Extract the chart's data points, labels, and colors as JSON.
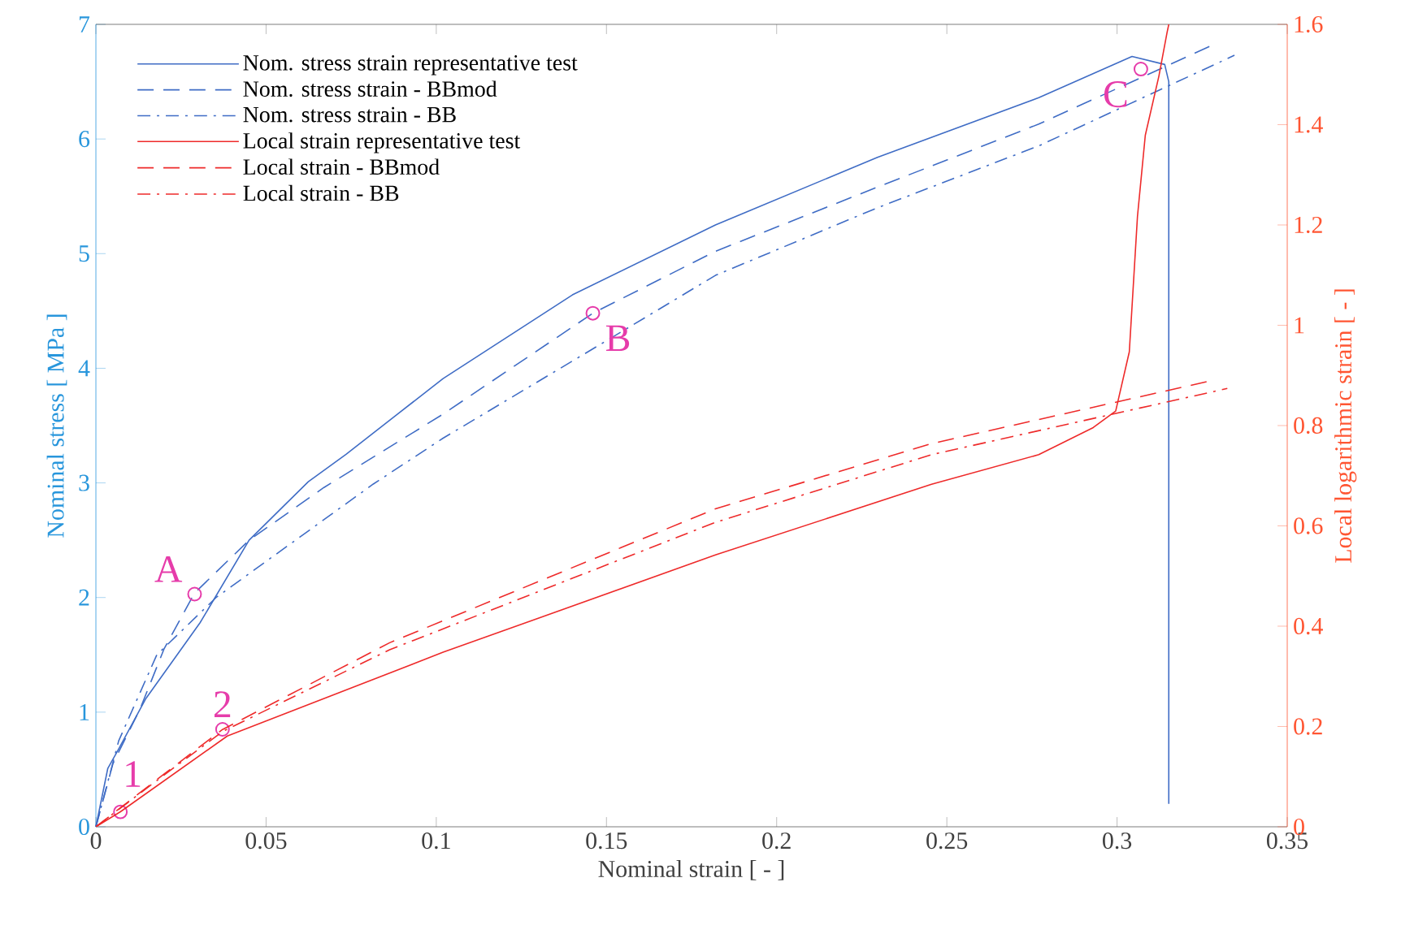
{
  "chart_data": {
    "type": "line",
    "xlabel": "Nominal strain [ - ]",
    "ylabel": "Nominal stress [ MPa ]",
    "y2label": "Local logarithmic strain [ - ]",
    "xlim": [
      0,
      0.35
    ],
    "xticks": [
      0,
      0.05,
      0.1,
      0.15,
      0.2,
      0.25,
      0.3,
      0.35
    ],
    "ylim": [
      0,
      7
    ],
    "yticks": [
      0,
      1,
      2,
      3,
      4,
      5,
      6,
      7
    ],
    "y2lim": [
      0,
      1.6
    ],
    "y2ticks": [
      0,
      0.2,
      0.4,
      0.6,
      0.8,
      1,
      1.2,
      1.4,
      1.6
    ],
    "legend": "top left",
    "grid": false,
    "series": [
      {
        "name": "Nom. stress strain representative test",
        "color": "#3f6cc5",
        "line_style": "solid",
        "x": [
          0,
          0.0035,
          0.0067,
          0.0147,
          0.0306,
          0.045,
          0.0624,
          0.0735,
          0.102,
          0.14,
          0.182,
          0.2296,
          0.277,
          0.3044,
          0.314,
          0.3152,
          0.3152
        ],
        "values": [
          0,
          0.51,
          0.68,
          1.12,
          1.78,
          2.5,
          3.01,
          3.25,
          3.91,
          4.64,
          5.25,
          5.84,
          6.36,
          6.72,
          6.65,
          6.5,
          0.2
        ]
      },
      {
        "name": "Nom. stress strain - BBmod",
        "color": "#3f6cc5",
        "line_style": "dashed",
        "x": [
          0,
          0.005,
          0.013,
          0.02,
          0.029,
          0.045,
          0.067,
          0.102,
          0.146,
          0.182,
          0.2296,
          0.277,
          0.3274
        ],
        "values": [
          0,
          0.55,
          1.03,
          1.55,
          2.04,
          2.5,
          2.96,
          3.6,
          4.48,
          5.02,
          5.58,
          6.13,
          6.81
        ]
      },
      {
        "name": "Nom. stress strain - BB",
        "color": "#3f6cc5",
        "line_style": "dashdot",
        "x": [
          0,
          0.0067,
          0.0179,
          0.0353,
          0.0815,
          0.102,
          0.15,
          0.182,
          0.2296,
          0.277,
          0.3345
        ],
        "values": [
          0,
          0.75,
          1.5,
          2.0,
          2.99,
          3.39,
          4.24,
          4.81,
          5.4,
          5.94,
          6.73
        ]
      },
      {
        "name": "Local strain representative test",
        "color": "#ee2a2a",
        "line_style": "solid",
        "axis": "y2",
        "x": [
          0,
          0.0072,
          0.0386,
          0.102,
          0.182,
          0.2455,
          0.277,
          0.293,
          0.2996,
          0.3036,
          0.306,
          0.3083,
          0.3123,
          0.3147,
          0.3152
        ],
        "values": [
          0,
          0.03,
          0.181,
          0.348,
          0.542,
          0.683,
          0.742,
          0.796,
          0.829,
          0.947,
          1.217,
          1.379,
          1.497,
          1.584,
          1.6
        ]
      },
      {
        "name": "Local strain - BBmod",
        "color": "#ee2a2a",
        "line_style": "dashed",
        "axis": "y2",
        "x": [
          0,
          0.02,
          0.0372,
          0.0863,
          0.182,
          0.2455,
          0.3267
        ],
        "values": [
          0,
          0.105,
          0.194,
          0.367,
          0.634,
          0.764,
          0.888
        ]
      },
      {
        "name": "Local strain - BB",
        "color": "#ee2a2a",
        "line_style": "dashdot",
        "axis": "y2",
        "x": [
          0,
          0.02,
          0.0372,
          0.0863,
          0.182,
          0.2455,
          0.3324
        ],
        "values": [
          0,
          0.103,
          0.19,
          0.353,
          0.607,
          0.742,
          0.874
        ]
      }
    ],
    "annotations": [
      {
        "text": "A",
        "x": 0.029,
        "y": 2.03
      },
      {
        "text": "B",
        "x": 0.146,
        "y": 4.48
      },
      {
        "text": "C",
        "x": 0.307,
        "y": 6.61
      },
      {
        "text": "1",
        "x": 0.0072,
        "y": 0.13
      },
      {
        "text": "2",
        "x": 0.0372,
        "y": 0.85
      }
    ]
  }
}
